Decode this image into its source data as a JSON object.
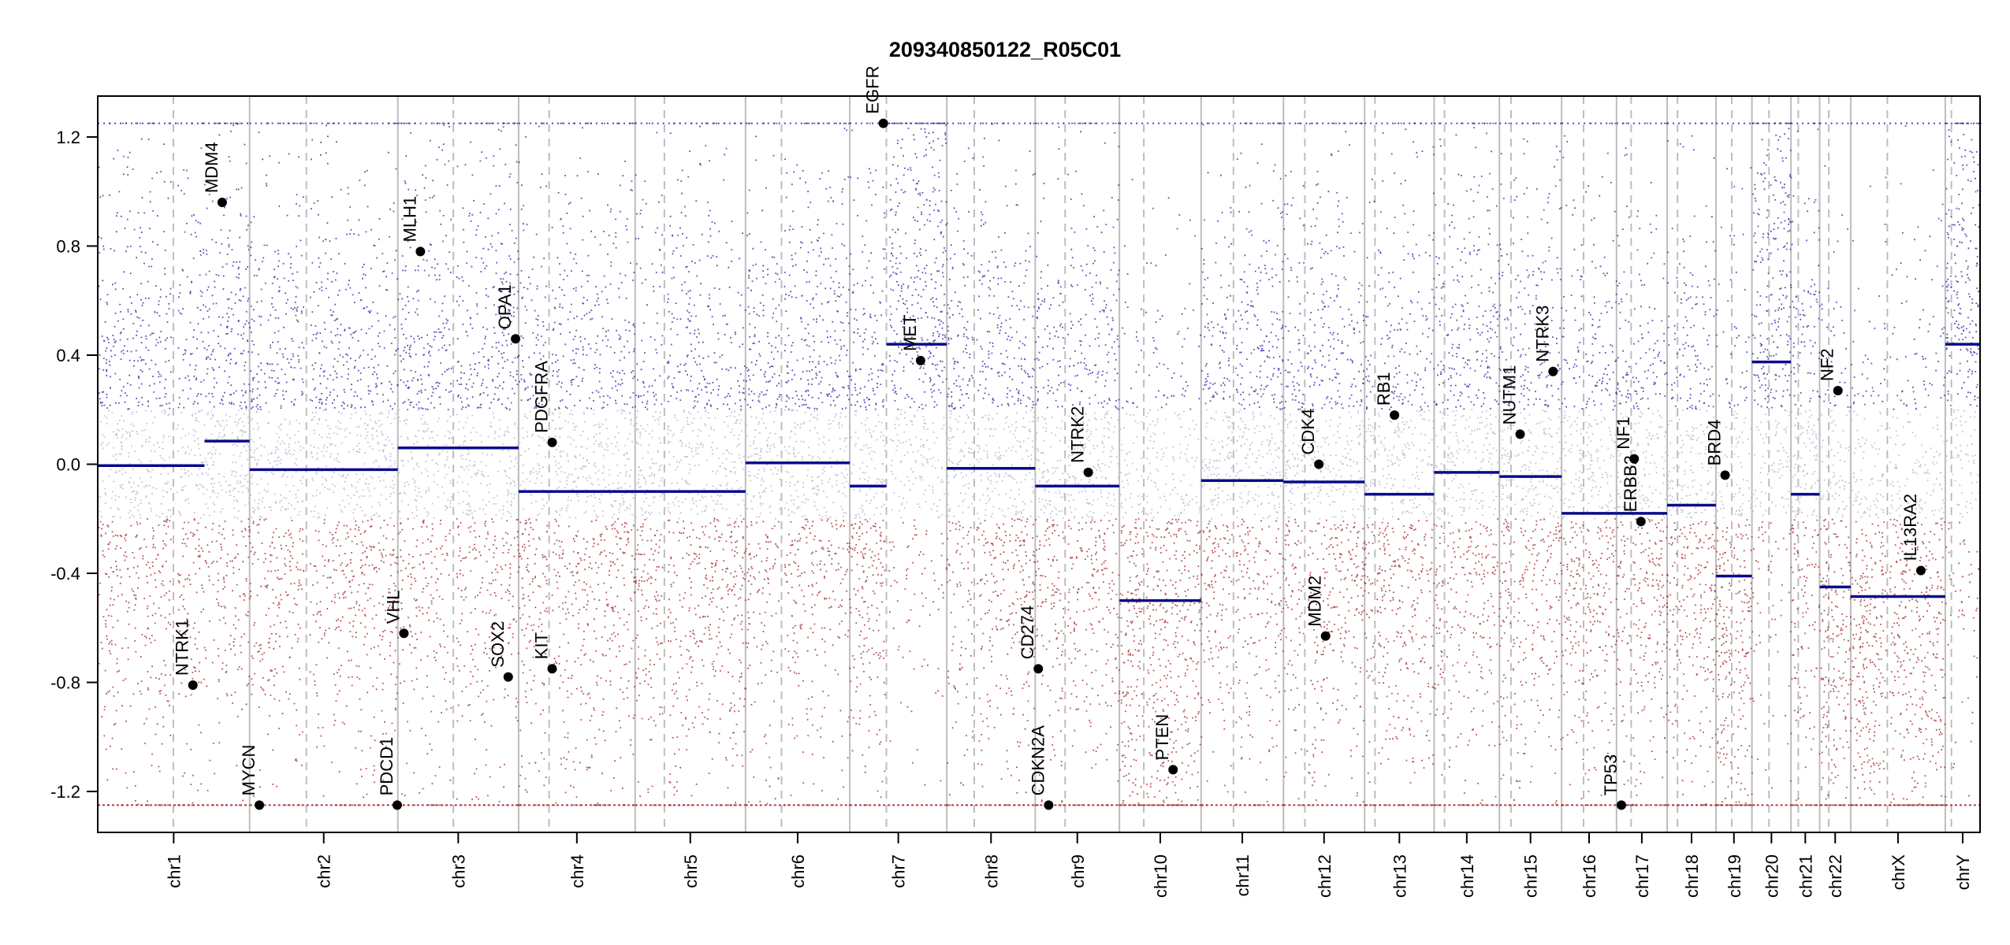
{
  "chart_data": {
    "type": "scatter",
    "title": "209340850122_R05C01",
    "xlabel": "",
    "ylabel": "",
    "ylim": [
      -1.35,
      1.35
    ],
    "y_ticks": [
      {
        "value": 1.2,
        "label": "1.2"
      },
      {
        "value": 0.8,
        "label": "0.8"
      },
      {
        "value": 0.4,
        "label": "0.4"
      },
      {
        "value": 0.0,
        "label": "0.0"
      },
      {
        "value": -0.4,
        "label": "-0.4"
      },
      {
        "value": -0.8,
        "label": "-0.8"
      },
      {
        "value": -1.2,
        "label": "-1.2"
      }
    ],
    "point_clip": [
      -1.25,
      1.25
    ],
    "colors": {
      "gain": "#1c1c9c",
      "loss": "#9c1c1c",
      "segment": "#0a0a8c",
      "boundary": "#bdbdbd",
      "gene_point": "#000000"
    },
    "grid": false,
    "legend": "none",
    "chromosomes": [
      {
        "name": "chr1",
        "length": 249,
        "centromere": 124
      },
      {
        "name": "chr2",
        "length": 243,
        "centromere": 93
      },
      {
        "name": "chr3",
        "length": 198,
        "centromere": 91
      },
      {
        "name": "chr4",
        "length": 191,
        "centromere": 50
      },
      {
        "name": "chr5",
        "length": 181,
        "centromere": 48
      },
      {
        "name": "chr6",
        "length": 171,
        "centromere": 59
      },
      {
        "name": "chr7",
        "length": 159,
        "centromere": 60
      },
      {
        "name": "chr8",
        "length": 145,
        "centromere": 45
      },
      {
        "name": "chr9",
        "length": 138,
        "centromere": 49
      },
      {
        "name": "chr10",
        "length": 134,
        "centromere": 40
      },
      {
        "name": "chr11",
        "length": 135,
        "centromere": 53
      },
      {
        "name": "chr12",
        "length": 133,
        "centromere": 35
      },
      {
        "name": "chr13",
        "length": 114,
        "centromere": 17
      },
      {
        "name": "chr14",
        "length": 107,
        "centromere": 17
      },
      {
        "name": "chr15",
        "length": 102,
        "centromere": 19
      },
      {
        "name": "chr16",
        "length": 90,
        "centromere": 36
      },
      {
        "name": "chr17",
        "length": 83,
        "centromere": 24
      },
      {
        "name": "chr18",
        "length": 80,
        "centromere": 17
      },
      {
        "name": "chr19",
        "length": 59,
        "centromere": 26
      },
      {
        "name": "chr20",
        "length": 64,
        "centromere": 28
      },
      {
        "name": "chr21",
        "length": 47,
        "centromere": 12
      },
      {
        "name": "chr22",
        "length": 51,
        "centromere": 15
      },
      {
        "name": "chrX",
        "length": 155,
        "centromere": 60
      },
      {
        "name": "chrY",
        "length": 57,
        "centromere": 10
      }
    ],
    "segments": [
      {
        "chrom": "chr1",
        "start": 0,
        "end": 175,
        "value": -0.005
      },
      {
        "chrom": "chr1",
        "start": 175,
        "end": 249,
        "value": 0.085
      },
      {
        "chrom": "chr2",
        "start": 0,
        "end": 243,
        "value": -0.02
      },
      {
        "chrom": "chr3",
        "start": 0,
        "end": 198,
        "value": 0.06
      },
      {
        "chrom": "chr4",
        "start": 0,
        "end": 191,
        "value": -0.1
      },
      {
        "chrom": "chr5",
        "start": 0,
        "end": 181,
        "value": -0.1
      },
      {
        "chrom": "chr6",
        "start": 0,
        "end": 171,
        "value": 0.005
      },
      {
        "chrom": "chr7",
        "start": 0,
        "end": 60,
        "value": -0.08
      },
      {
        "chrom": "chr7",
        "start": 60,
        "end": 159,
        "value": 0.44
      },
      {
        "chrom": "chr8",
        "start": 0,
        "end": 145,
        "value": -0.015
      },
      {
        "chrom": "chr9",
        "start": 0,
        "end": 138,
        "value": -0.08
      },
      {
        "chrom": "chr10",
        "start": 0,
        "end": 134,
        "value": -0.5
      },
      {
        "chrom": "chr11",
        "start": 0,
        "end": 135,
        "value": -0.06
      },
      {
        "chrom": "chr12",
        "start": 0,
        "end": 133,
        "value": -0.065
      },
      {
        "chrom": "chr13",
        "start": 0,
        "end": 114,
        "value": -0.11
      },
      {
        "chrom": "chr14",
        "start": 0,
        "end": 107,
        "value": -0.03
      },
      {
        "chrom": "chr15",
        "start": 0,
        "end": 102,
        "value": -0.045
      },
      {
        "chrom": "chr16",
        "start": 0,
        "end": 90,
        "value": -0.18
      },
      {
        "chrom": "chr17",
        "start": 0,
        "end": 83,
        "value": -0.18
      },
      {
        "chrom": "chr18",
        "start": 0,
        "end": 80,
        "value": -0.15
      },
      {
        "chrom": "chr19",
        "start": 0,
        "end": 59,
        "value": -0.41
      },
      {
        "chrom": "chr20",
        "start": 0,
        "end": 64,
        "value": 0.375
      },
      {
        "chrom": "chr21",
        "start": 0,
        "end": 47,
        "value": -0.11
      },
      {
        "chrom": "chr22",
        "start": 0,
        "end": 51,
        "value": -0.45
      },
      {
        "chrom": "chrX",
        "start": 0,
        "end": 155,
        "value": -0.485
      },
      {
        "chrom": "chrY",
        "start": 0,
        "end": 57,
        "value": 0.44
      }
    ],
    "genes": [
      {
        "name": "NTRK1",
        "chrom": "chr1",
        "pos": 156,
        "value": -0.81
      },
      {
        "name": "MDM4",
        "chrom": "chr1",
        "pos": 204,
        "value": 0.96
      },
      {
        "name": "MYCN",
        "chrom": "chr2",
        "pos": 16,
        "value": -1.25
      },
      {
        "name": "PDCD1",
        "chrom": "chr2",
        "pos": 242,
        "value": -1.25
      },
      {
        "name": "VHL",
        "chrom": "chr3",
        "pos": 10,
        "value": -0.62
      },
      {
        "name": "MLH1",
        "chrom": "chr3",
        "pos": 37,
        "value": 0.78
      },
      {
        "name": "SOX2",
        "chrom": "chr3",
        "pos": 181,
        "value": -0.78
      },
      {
        "name": "OPA1",
        "chrom": "chr3",
        "pos": 193,
        "value": 0.46
      },
      {
        "name": "PDGFRA",
        "chrom": "chr4",
        "pos": 55,
        "value": 0.08
      },
      {
        "name": "KIT",
        "chrom": "chr4",
        "pos": 55,
        "value": -0.75
      },
      {
        "name": "EGFR",
        "chrom": "chr7",
        "pos": 55,
        "value": 1.25
      },
      {
        "name": "MET",
        "chrom": "chr7",
        "pos": 116,
        "value": 0.38
      },
      {
        "name": "CD274",
        "chrom": "chr9",
        "pos": 5,
        "value": -0.75
      },
      {
        "name": "CDKN2A",
        "chrom": "chr9",
        "pos": 22,
        "value": -1.25
      },
      {
        "name": "NTRK2",
        "chrom": "chr9",
        "pos": 87,
        "value": -0.03
      },
      {
        "name": "PTEN",
        "chrom": "chr10",
        "pos": 88,
        "value": -1.12
      },
      {
        "name": "CDK4",
        "chrom": "chr12",
        "pos": 58,
        "value": 0.0
      },
      {
        "name": "MDM2",
        "chrom": "chr12",
        "pos": 69,
        "value": -0.63
      },
      {
        "name": "RB1",
        "chrom": "chr13",
        "pos": 49,
        "value": 0.18
      },
      {
        "name": "NUTM1",
        "chrom": "chr15",
        "pos": 34,
        "value": 0.11
      },
      {
        "name": "NTRK3",
        "chrom": "chr15",
        "pos": 88,
        "value": 0.34
      },
      {
        "name": "TP53",
        "chrom": "chr17",
        "pos": 8,
        "value": -1.25
      },
      {
        "name": "NF1",
        "chrom": "chr17",
        "pos": 29,
        "value": 0.02
      },
      {
        "name": "ERBB2",
        "chrom": "chr17",
        "pos": 40,
        "value": -0.21
      },
      {
        "name": "BRD4",
        "chrom": "chr19",
        "pos": 15,
        "value": -0.04
      },
      {
        "name": "NF2",
        "chrom": "chr22",
        "pos": 30,
        "value": 0.27
      },
      {
        "name": "IL13RA2",
        "chrom": "chrX",
        "pos": 115,
        "value": -0.39
      }
    ]
  }
}
